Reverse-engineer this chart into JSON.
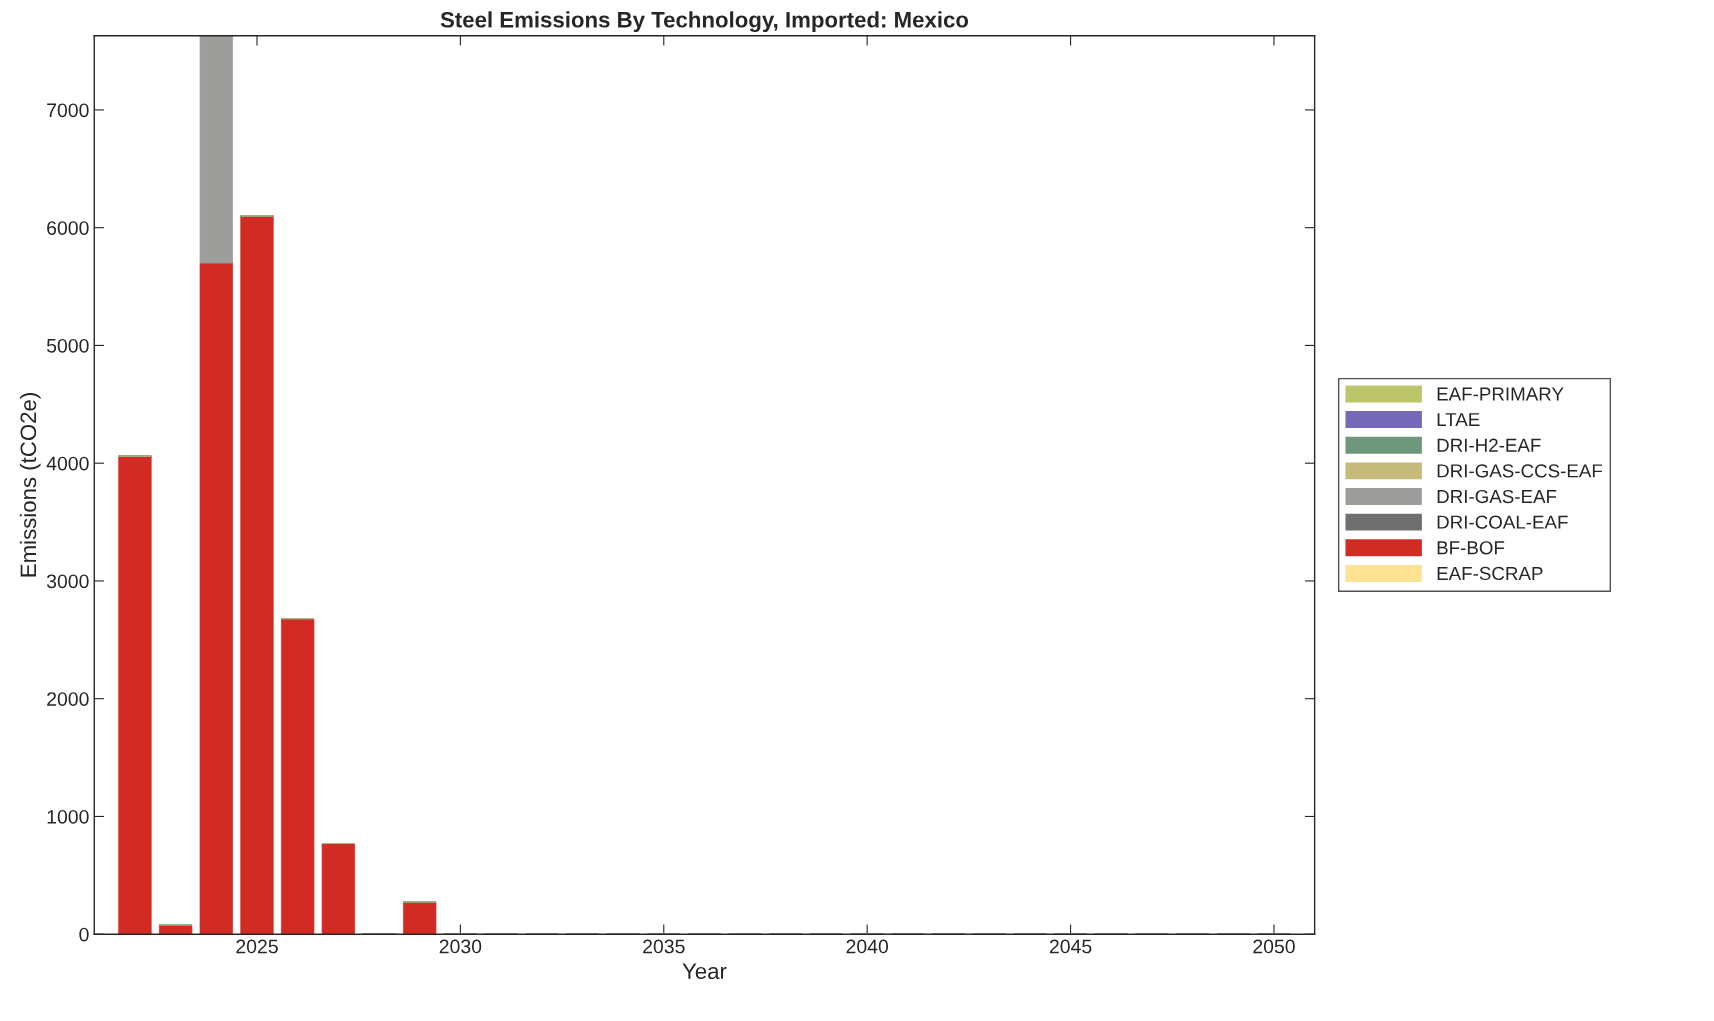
{
  "chart_data": {
    "type": "bar",
    "title": "Steel Emissions By Technology, Imported: Mexico",
    "xlabel": "Year",
    "ylabel": "Emissions (tCO2e)",
    "x": [
      2022,
      2023,
      2024,
      2025,
      2026,
      2027,
      2028,
      2029,
      2030,
      2031,
      2032,
      2033,
      2034,
      2035,
      2036,
      2037,
      2038,
      2039,
      2040,
      2041,
      2042,
      2043,
      2044,
      2045,
      2046,
      2047,
      2048,
      2049,
      2050
    ],
    "stacked": true,
    "series": [
      {
        "name": "EAF-SCRAP",
        "color": "#fde293",
        "values": [
          0,
          0,
          0,
          0,
          0,
          0,
          0,
          0,
          0,
          0,
          0,
          0,
          0,
          0,
          0,
          0,
          0,
          0,
          0,
          0,
          0,
          0,
          0,
          0,
          0,
          0,
          0,
          0,
          0
        ]
      },
      {
        "name": "BF-BOF",
        "color": "#d22b24",
        "values": [
          4060,
          80,
          5700,
          6100,
          2680,
          770,
          0,
          275,
          0,
          0,
          0,
          0,
          0,
          0,
          0,
          0,
          0,
          0,
          0,
          0,
          0,
          0,
          0,
          0,
          0,
          0,
          0,
          0,
          0
        ]
      },
      {
        "name": "DRI-COAL-EAF",
        "color": "#6f6f6f",
        "values": [
          0,
          0,
          0,
          0,
          0,
          0,
          0,
          0,
          0,
          0,
          0,
          0,
          0,
          0,
          0,
          0,
          0,
          0,
          0,
          0,
          0,
          0,
          0,
          0,
          0,
          0,
          0,
          0,
          0
        ]
      },
      {
        "name": "DRI-GAS-EAF",
        "color": "#9d9d9b",
        "values": [
          0,
          0,
          1930,
          0,
          0,
          0,
          0,
          0,
          0,
          0,
          0,
          0,
          0,
          0,
          0,
          0,
          0,
          0,
          0,
          0,
          0,
          0,
          0,
          0,
          0,
          0,
          0,
          0,
          0
        ]
      },
      {
        "name": "DRI-GAS-CCS-EAF",
        "color": "#c5bb7c",
        "values": [
          0,
          0,
          0,
          0,
          0,
          0,
          0,
          0,
          0,
          0,
          0,
          0,
          0,
          0,
          0,
          0,
          0,
          0,
          0,
          0,
          0,
          0,
          0,
          0,
          0,
          0,
          0,
          0,
          0
        ]
      },
      {
        "name": "DRI-H2-EAF",
        "color": "#6e967a",
        "values": [
          0,
          0,
          0,
          0,
          0,
          0,
          0,
          0,
          0,
          0,
          0,
          0,
          0,
          0,
          0,
          0,
          0,
          0,
          0,
          0,
          0,
          0,
          0,
          0,
          0,
          0,
          0,
          0,
          0
        ]
      },
      {
        "name": "LTAE",
        "color": "#7468b8",
        "values": [
          0,
          0,
          0,
          0,
          0,
          0,
          0,
          0,
          0,
          0,
          0,
          0,
          0,
          0,
          0,
          0,
          0,
          0,
          0,
          0,
          0,
          0,
          0,
          0,
          0,
          0,
          0,
          0,
          0
        ]
      },
      {
        "name": "EAF-PRIMARY",
        "color": "#bcc56a",
        "values": [
          0,
          0,
          0,
          0,
          0,
          0,
          0,
          0,
          0,
          0,
          0,
          0,
          0,
          0,
          0,
          0,
          0,
          0,
          0,
          0,
          0,
          0,
          0,
          0,
          0,
          0,
          0,
          0,
          0
        ]
      }
    ],
    "xlim": [
      2021,
      2051
    ],
    "xticks": [
      2025,
      2030,
      2035,
      2040,
      2045,
      2050
    ],
    "ylim": [
      0,
      7630
    ],
    "yticks": [
      0,
      1000,
      2000,
      3000,
      4000,
      5000,
      6000,
      7000
    ],
    "grid": false,
    "legend": "right"
  }
}
